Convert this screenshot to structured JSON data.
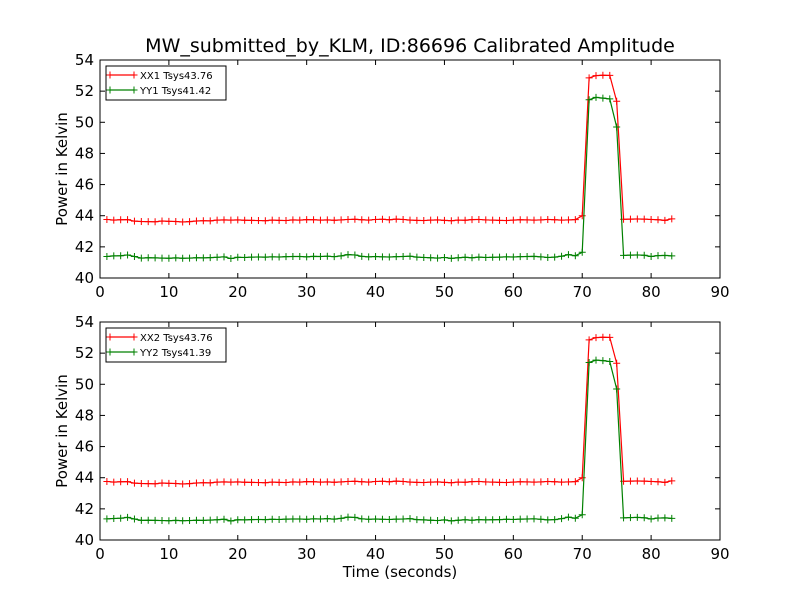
{
  "title": "MW_submitted_by_KLM, ID:86696 Calibrated Amplitude",
  "colors": {
    "xx": "#ff0000",
    "yy": "#008000"
  },
  "chart_data": [
    {
      "type": "line",
      "ylabel": "Power in Kelvin",
      "xlabel": "",
      "xlim": [
        0,
        90
      ],
      "ylim": [
        40,
        54
      ],
      "xticks": [
        0,
        10,
        20,
        30,
        40,
        50,
        60,
        70,
        80,
        90
      ],
      "yticks": [
        40,
        42,
        44,
        46,
        48,
        50,
        52,
        54
      ],
      "grid": false,
      "legend_position": "upper-left",
      "x": [
        1,
        2,
        3,
        4,
        5,
        6,
        7,
        8,
        9,
        10,
        11,
        12,
        13,
        14,
        15,
        16,
        17,
        18,
        19,
        20,
        21,
        22,
        23,
        24,
        25,
        26,
        27,
        28,
        29,
        30,
        31,
        32,
        33,
        34,
        35,
        36,
        37,
        38,
        39,
        40,
        41,
        42,
        43,
        44,
        45,
        46,
        47,
        48,
        49,
        50,
        51,
        52,
        53,
        54,
        55,
        56,
        57,
        58,
        59,
        60,
        61,
        62,
        63,
        64,
        65,
        66,
        67,
        68,
        69,
        70,
        71,
        72,
        73,
        74,
        75,
        76,
        77,
        78,
        79,
        80,
        81,
        82,
        83
      ],
      "series": [
        {
          "name": "XX1 Tsys43.76",
          "color": "#ff0000",
          "values": [
            43.76,
            43.72,
            43.74,
            43.75,
            43.65,
            43.63,
            43.62,
            43.61,
            43.66,
            43.64,
            43.63,
            43.6,
            43.62,
            43.66,
            43.68,
            43.67,
            43.72,
            43.73,
            43.72,
            43.73,
            43.71,
            43.7,
            43.69,
            43.68,
            43.72,
            43.7,
            43.69,
            43.73,
            43.72,
            43.75,
            43.74,
            43.72,
            43.73,
            43.71,
            43.73,
            43.76,
            43.77,
            43.74,
            43.72,
            43.76,
            43.77,
            43.74,
            43.78,
            43.76,
            43.72,
            43.7,
            43.69,
            43.72,
            43.73,
            43.7,
            43.68,
            43.72,
            43.71,
            43.75,
            43.76,
            43.73,
            43.72,
            43.7,
            43.69,
            43.72,
            43.74,
            43.73,
            43.72,
            43.73,
            43.76,
            43.74,
            43.72,
            43.73,
            43.75,
            44.0,
            52.85,
            53.0,
            53.02,
            53.01,
            51.35,
            43.77,
            43.78,
            43.79,
            43.78,
            43.76,
            43.74,
            43.7,
            43.8
          ]
        },
        {
          "name": "YY1 Tsys41.42",
          "color": "#008000",
          "values": [
            41.38,
            41.42,
            41.43,
            41.48,
            41.38,
            41.28,
            41.3,
            41.29,
            41.28,
            41.27,
            41.29,
            41.27,
            41.28,
            41.3,
            41.29,
            41.31,
            41.33,
            41.36,
            41.25,
            41.33,
            41.32,
            41.34,
            41.35,
            41.34,
            41.36,
            41.35,
            41.37,
            41.38,
            41.38,
            41.36,
            41.39,
            41.38,
            41.4,
            41.37,
            41.42,
            41.5,
            41.48,
            41.39,
            41.36,
            41.38,
            41.36,
            41.35,
            41.37,
            41.38,
            41.4,
            41.34,
            41.32,
            41.3,
            41.28,
            41.32,
            41.26,
            41.3,
            41.33,
            41.3,
            41.34,
            41.32,
            41.33,
            41.34,
            41.36,
            41.35,
            41.37,
            41.38,
            41.39,
            41.36,
            41.32,
            41.34,
            41.4,
            41.5,
            41.43,
            41.65,
            51.45,
            51.6,
            51.55,
            51.5,
            49.7,
            41.45,
            41.47,
            41.48,
            41.46,
            41.38,
            41.44,
            41.45,
            41.42
          ]
        }
      ]
    },
    {
      "type": "line",
      "ylabel": "Power in Kelvin",
      "xlabel": "Time (seconds)",
      "xlim": [
        0,
        90
      ],
      "ylim": [
        40,
        54
      ],
      "xticks": [
        0,
        10,
        20,
        30,
        40,
        50,
        60,
        70,
        80,
        90
      ],
      "yticks": [
        40,
        42,
        44,
        46,
        48,
        50,
        52,
        54
      ],
      "grid": false,
      "legend_position": "upper-left",
      "x": [
        1,
        2,
        3,
        4,
        5,
        6,
        7,
        8,
        9,
        10,
        11,
        12,
        13,
        14,
        15,
        16,
        17,
        18,
        19,
        20,
        21,
        22,
        23,
        24,
        25,
        26,
        27,
        28,
        29,
        30,
        31,
        32,
        33,
        34,
        35,
        36,
        37,
        38,
        39,
        40,
        41,
        42,
        43,
        44,
        45,
        46,
        47,
        48,
        49,
        50,
        51,
        52,
        53,
        54,
        55,
        56,
        57,
        58,
        59,
        60,
        61,
        62,
        63,
        64,
        65,
        66,
        67,
        68,
        69,
        70,
        71,
        72,
        73,
        74,
        75,
        76,
        77,
        78,
        79,
        80,
        81,
        82,
        83
      ],
      "series": [
        {
          "name": "XX2 Tsys43.76",
          "color": "#ff0000",
          "values": [
            43.76,
            43.72,
            43.74,
            43.75,
            43.65,
            43.63,
            43.62,
            43.61,
            43.66,
            43.64,
            43.63,
            43.6,
            43.62,
            43.66,
            43.68,
            43.67,
            43.72,
            43.73,
            43.72,
            43.73,
            43.71,
            43.7,
            43.69,
            43.68,
            43.72,
            43.7,
            43.69,
            43.73,
            43.72,
            43.75,
            43.74,
            43.72,
            43.73,
            43.71,
            43.73,
            43.76,
            43.77,
            43.74,
            43.72,
            43.76,
            43.77,
            43.74,
            43.78,
            43.76,
            43.72,
            43.7,
            43.69,
            43.72,
            43.73,
            43.7,
            43.68,
            43.72,
            43.71,
            43.75,
            43.76,
            43.73,
            43.72,
            43.7,
            43.69,
            43.72,
            43.74,
            43.73,
            43.72,
            43.73,
            43.76,
            43.74,
            43.72,
            43.73,
            43.75,
            44.0,
            52.85,
            53.0,
            53.02,
            53.01,
            51.35,
            43.77,
            43.78,
            43.79,
            43.78,
            43.76,
            43.74,
            43.7,
            43.8
          ]
        },
        {
          "name": "YY2 Tsys41.39",
          "color": "#008000",
          "values": [
            41.36,
            41.38,
            41.4,
            41.45,
            41.35,
            41.26,
            41.27,
            41.26,
            41.25,
            41.24,
            41.26,
            41.24,
            41.25,
            41.27,
            41.26,
            41.28,
            41.3,
            41.33,
            41.22,
            41.3,
            41.29,
            41.31,
            41.32,
            41.31,
            41.33,
            41.32,
            41.34,
            41.35,
            41.35,
            41.33,
            41.36,
            41.35,
            41.37,
            41.34,
            41.39,
            41.47,
            41.45,
            41.36,
            41.33,
            41.35,
            41.33,
            41.32,
            41.34,
            41.35,
            41.37,
            41.31,
            41.29,
            41.27,
            41.25,
            41.29,
            41.23,
            41.27,
            41.3,
            41.27,
            41.31,
            41.29,
            41.3,
            41.31,
            41.33,
            41.32,
            41.34,
            41.35,
            41.36,
            41.33,
            41.29,
            41.31,
            41.37,
            41.47,
            41.4,
            41.62,
            51.4,
            51.55,
            51.52,
            51.46,
            49.7,
            41.42,
            41.44,
            41.45,
            41.43,
            41.35,
            41.41,
            41.42,
            41.39
          ]
        }
      ]
    }
  ]
}
